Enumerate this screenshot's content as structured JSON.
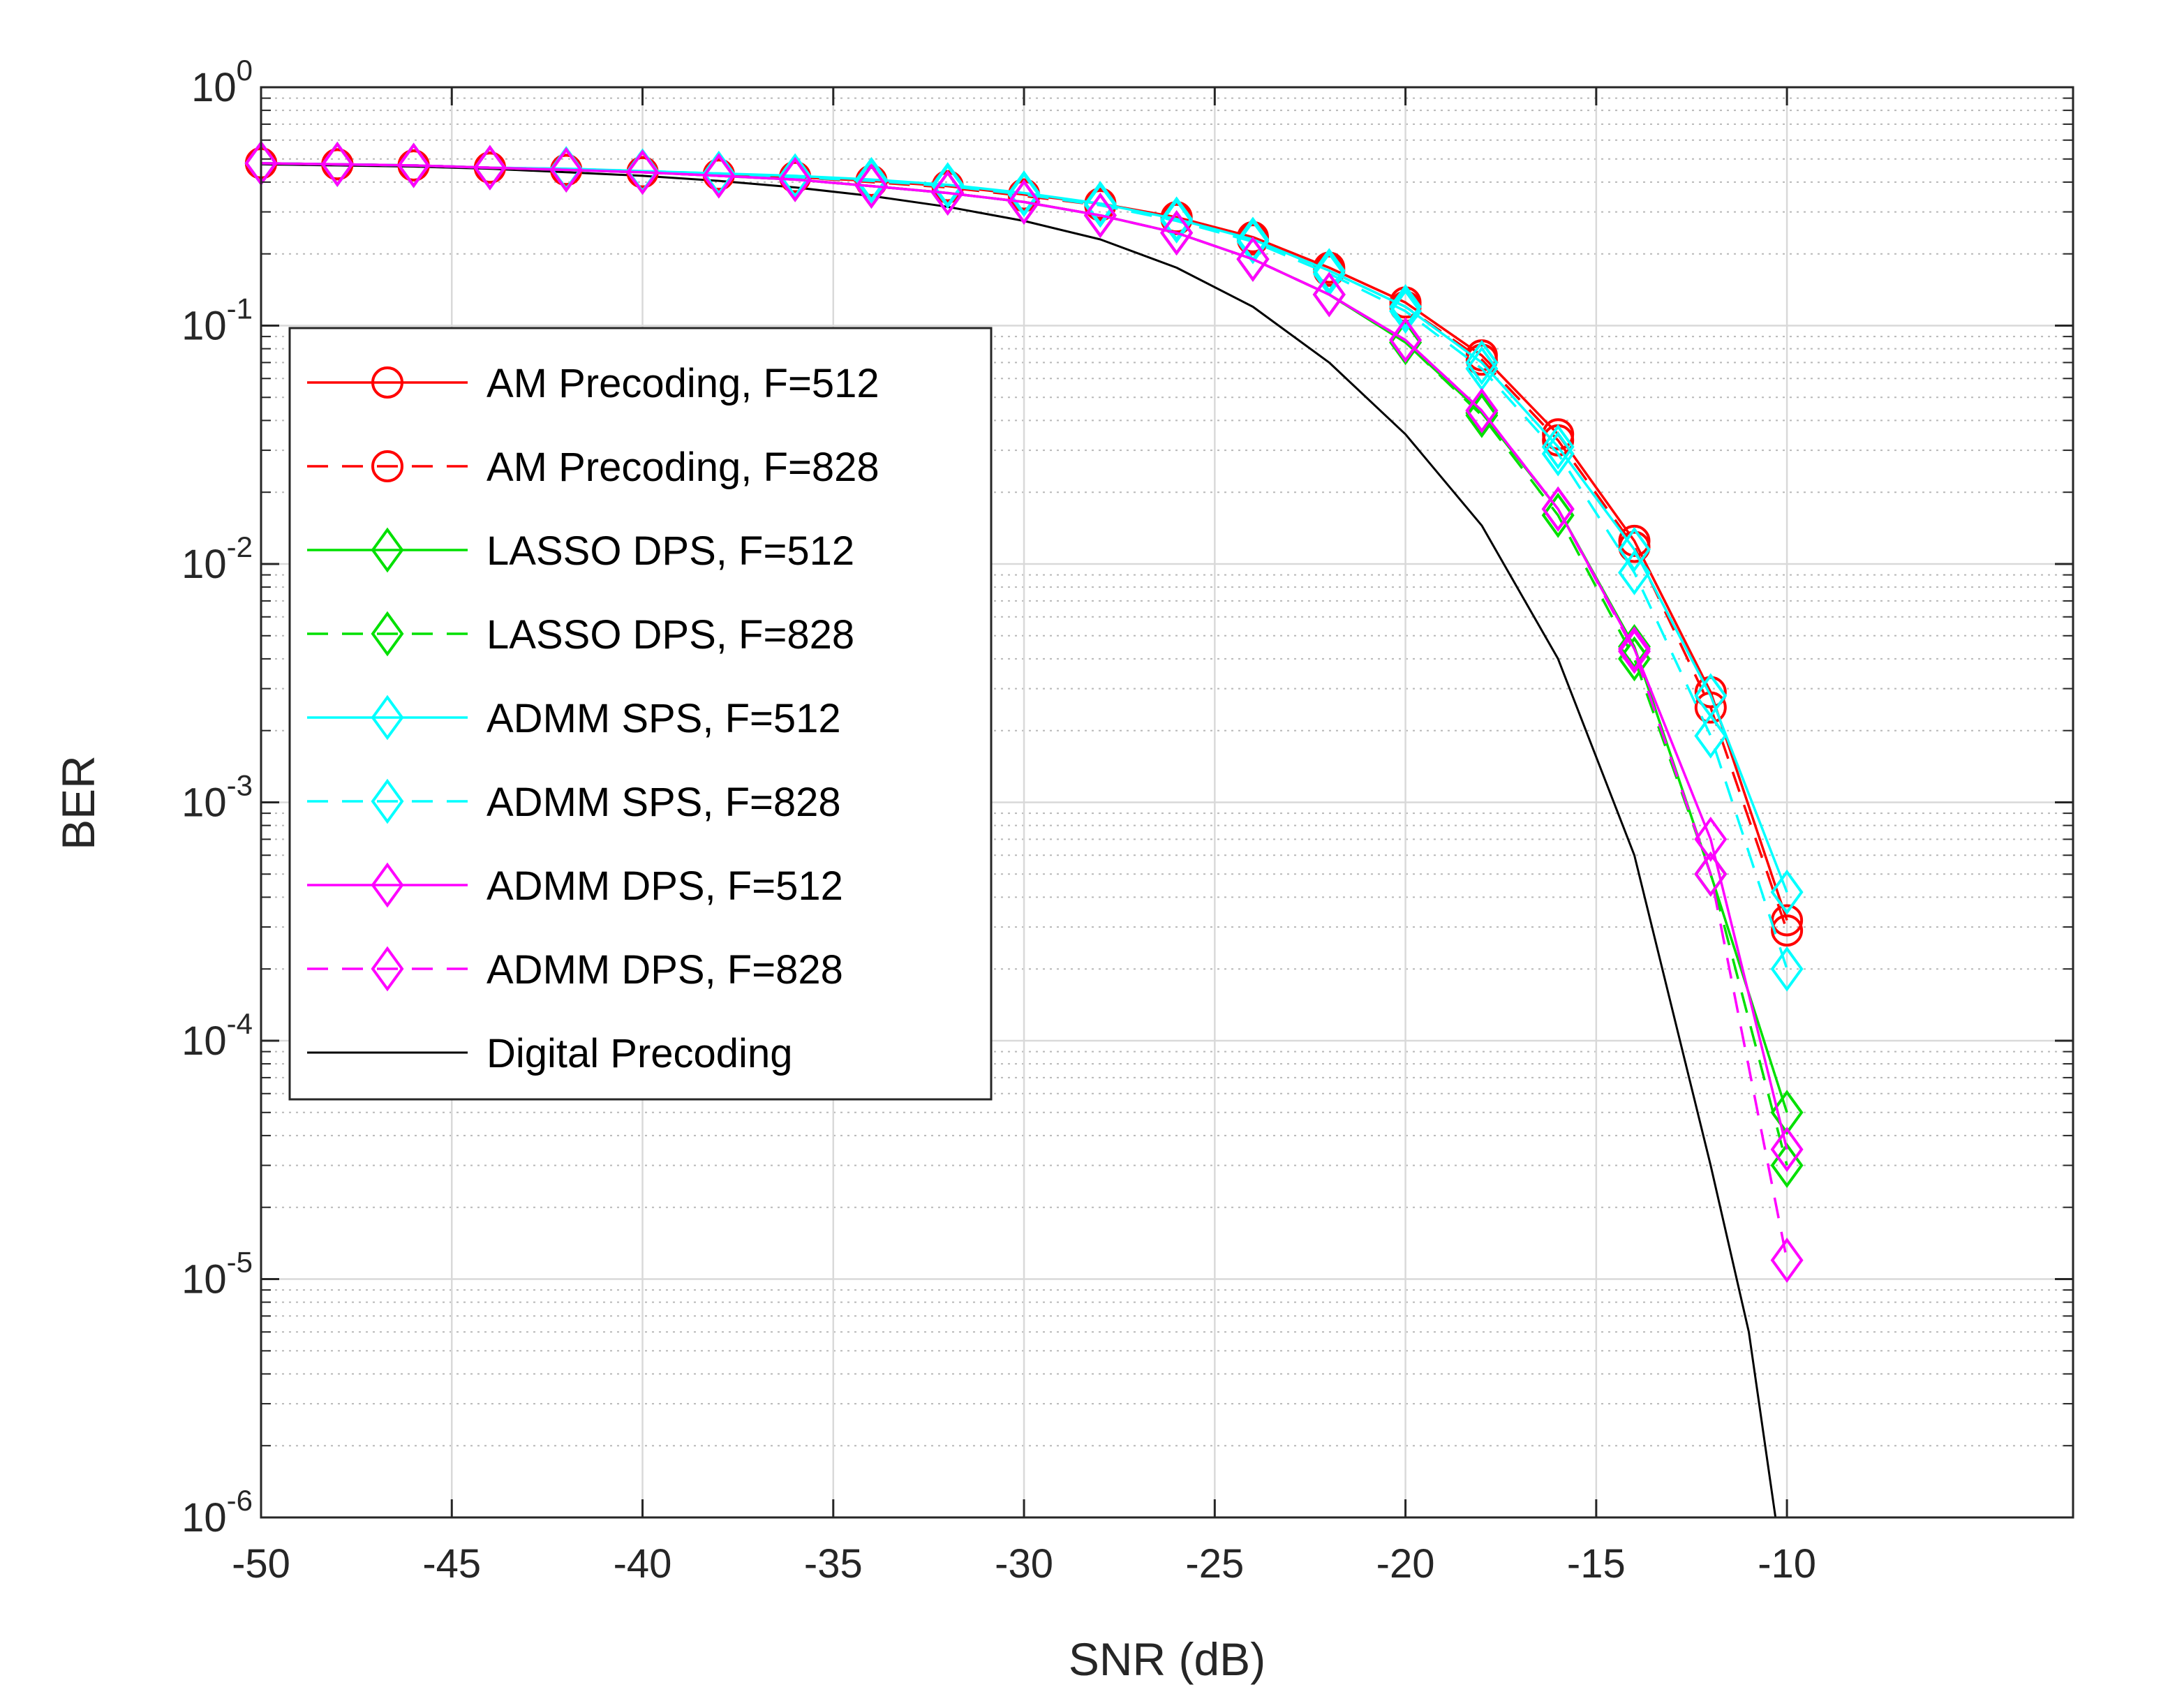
{
  "chart_data": {
    "type": "line",
    "title": "",
    "xlabel": "SNR (dB)",
    "ylabel": "BER",
    "xlim": [
      -50,
      -2.5
    ],
    "ylim": [
      1e-06,
      1
    ],
    "yscale": "log",
    "grid": true,
    "minor_grid": true,
    "legend_position": "center-left",
    "x_ticks": [
      {
        "value": -50,
        "label": "-50"
      },
      {
        "value": -45,
        "label": "-45"
      },
      {
        "value": -40,
        "label": "-40"
      },
      {
        "value": -35,
        "label": "-35"
      },
      {
        "value": -30,
        "label": "-30"
      },
      {
        "value": -25,
        "label": "-25"
      },
      {
        "value": -20,
        "label": "-20"
      },
      {
        "value": -15,
        "label": "-15"
      },
      {
        "value": -10,
        "label": "-10"
      }
    ],
    "y_ticks": [
      {
        "value": 1,
        "base": "10",
        "exp": "0"
      },
      {
        "value": 0.1,
        "base": "10",
        "exp": "-1"
      },
      {
        "value": 0.01,
        "base": "10",
        "exp": "-2"
      },
      {
        "value": 0.001,
        "base": "10",
        "exp": "-3"
      },
      {
        "value": 0.0001,
        "base": "10",
        "exp": "-4"
      },
      {
        "value": 1e-05,
        "base": "10",
        "exp": "-5"
      },
      {
        "value": 1e-06,
        "base": "10",
        "exp": "-6"
      }
    ],
    "series": [
      {
        "name": "AM Precoding, F=512",
        "color": "#ff0000",
        "dash": "solid",
        "marker": "circle",
        "x": [
          -50,
          -48,
          -46,
          -44,
          -42,
          -40,
          -38,
          -36,
          -34,
          -32,
          -30,
          -28,
          -26,
          -24,
          -22,
          -20,
          -18,
          -16,
          -14,
          -12,
          -10
        ],
        "values": [
          0.48,
          0.475,
          0.47,
          0.46,
          0.45,
          0.44,
          0.43,
          0.42,
          0.405,
          0.385,
          0.355,
          0.325,
          0.285,
          0.235,
          0.175,
          0.125,
          0.075,
          0.035,
          0.0125,
          0.0029,
          0.00032
        ]
      },
      {
        "name": "AM Precoding, F=828",
        "color": "#ff0000",
        "dash": "dashed",
        "marker": "circle",
        "x": [
          -50,
          -48,
          -46,
          -44,
          -42,
          -40,
          -38,
          -36,
          -34,
          -32,
          -30,
          -28,
          -26,
          -24,
          -22,
          -20,
          -18,
          -16,
          -14,
          -12,
          -10
        ],
        "values": [
          0.48,
          0.475,
          0.47,
          0.46,
          0.45,
          0.44,
          0.43,
          0.42,
          0.4,
          0.38,
          0.35,
          0.32,
          0.28,
          0.23,
          0.17,
          0.12,
          0.072,
          0.033,
          0.0118,
          0.0025,
          0.00029
        ]
      },
      {
        "name": "LASSO DPS, F=512",
        "color": "#00e000",
        "dash": "solid",
        "marker": "diamond",
        "x": [
          -50,
          -48,
          -46,
          -44,
          -42,
          -40,
          -38,
          -36,
          -34,
          -32,
          -30,
          -28,
          -26,
          -24,
          -22,
          -20,
          -18,
          -16,
          -14,
          -12,
          -10
        ],
        "values": [
          0.48,
          0.475,
          0.47,
          0.46,
          0.45,
          0.44,
          0.425,
          0.41,
          0.385,
          0.36,
          0.33,
          0.29,
          0.245,
          0.19,
          0.135,
          0.085,
          0.043,
          0.017,
          0.0045,
          0.0005,
          5e-05
        ]
      },
      {
        "name": "LASSO DPS, F=828",
        "color": "#00e000",
        "dash": "dashed",
        "marker": "diamond",
        "x": [
          -50,
          -48,
          -46,
          -44,
          -42,
          -40,
          -38,
          -36,
          -34,
          -32,
          -30,
          -28,
          -26,
          -24,
          -22,
          -20,
          -18,
          -16,
          -14,
          -12,
          -10
        ],
        "values": [
          0.48,
          0.475,
          0.47,
          0.46,
          0.45,
          0.44,
          0.425,
          0.41,
          0.385,
          0.36,
          0.33,
          0.29,
          0.245,
          0.19,
          0.135,
          0.085,
          0.042,
          0.016,
          0.004,
          0.0005,
          3e-05
        ]
      },
      {
        "name": "ADMM SPS, F=512",
        "color": "#00ffff",
        "dash": "solid",
        "marker": "diamond",
        "x": [
          -50,
          -48,
          -46,
          -44,
          -42,
          -40,
          -38,
          -36,
          -34,
          -32,
          -30,
          -28,
          -26,
          -24,
          -22,
          -20,
          -18,
          -16,
          -14,
          -12,
          -10
        ],
        "values": [
          0.48,
          0.475,
          0.47,
          0.46,
          0.455,
          0.445,
          0.435,
          0.425,
          0.41,
          0.39,
          0.36,
          0.325,
          0.28,
          0.23,
          0.17,
          0.12,
          0.07,
          0.031,
          0.0115,
          0.0028,
          0.00042
        ]
      },
      {
        "name": "ADMM SPS, F=828",
        "color": "#00ffff",
        "dash": "dashed",
        "marker": "diamond",
        "x": [
          -50,
          -48,
          -46,
          -44,
          -42,
          -40,
          -38,
          -36,
          -34,
          -32,
          -30,
          -28,
          -26,
          -24,
          -22,
          -20,
          -18,
          -16,
          -14,
          -12,
          -10
        ],
        "values": [
          0.48,
          0.475,
          0.47,
          0.46,
          0.455,
          0.445,
          0.435,
          0.42,
          0.405,
          0.385,
          0.355,
          0.32,
          0.275,
          0.225,
          0.165,
          0.115,
          0.066,
          0.029,
          0.0092,
          0.0019,
          0.0002
        ]
      },
      {
        "name": "ADMM DPS, F=512",
        "color": "#ff00ff",
        "dash": "solid",
        "marker": "diamond",
        "x": [
          -50,
          -48,
          -46,
          -44,
          -42,
          -40,
          -38,
          -36,
          -34,
          -32,
          -30,
          -28,
          -26,
          -24,
          -22,
          -20,
          -18,
          -16,
          -14,
          -12,
          -10
        ],
        "values": [
          0.48,
          0.475,
          0.47,
          0.46,
          0.45,
          0.44,
          0.425,
          0.41,
          0.385,
          0.36,
          0.33,
          0.29,
          0.245,
          0.19,
          0.135,
          0.087,
          0.044,
          0.017,
          0.0044,
          0.0007,
          3.5e-05
        ]
      },
      {
        "name": "ADMM DPS, F=828",
        "color": "#ff00ff",
        "dash": "dashed",
        "marker": "diamond",
        "x": [
          -50,
          -48,
          -46,
          -44,
          -42,
          -40,
          -38,
          -36,
          -34,
          -32,
          -30,
          -28,
          -26,
          -24,
          -22,
          -20,
          -18,
          -16,
          -14,
          -12,
          -10
        ],
        "values": [
          0.48,
          0.475,
          0.47,
          0.46,
          0.45,
          0.44,
          0.425,
          0.41,
          0.385,
          0.36,
          0.33,
          0.29,
          0.245,
          0.19,
          0.135,
          0.087,
          0.044,
          0.017,
          0.0043,
          0.0005,
          1.2e-05
        ]
      },
      {
        "name": "Digital Precoding",
        "color": "#000000",
        "dash": "solid",
        "marker": "none",
        "x": [
          -50,
          -48,
          -46,
          -44,
          -42,
          -40,
          -38,
          -36,
          -34,
          -32,
          -30,
          -28,
          -26,
          -24,
          -22,
          -20,
          -18,
          -16,
          -14,
          -12,
          -11,
          -10.3
        ],
        "values": [
          0.475,
          0.47,
          0.465,
          0.455,
          0.44,
          0.425,
          0.405,
          0.38,
          0.35,
          0.315,
          0.275,
          0.23,
          0.175,
          0.12,
          0.07,
          0.035,
          0.0145,
          0.004,
          0.0006,
          3e-05,
          6e-06,
          1e-06
        ]
      }
    ]
  }
}
